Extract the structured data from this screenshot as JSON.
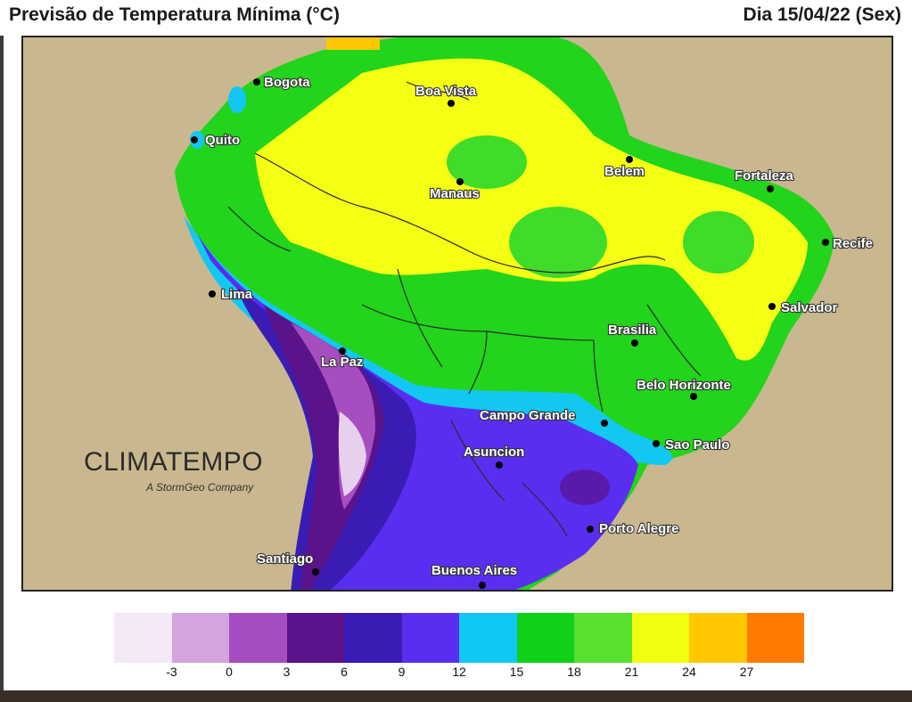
{
  "header": {
    "title": "Previsão de Temperatura Mínima (°C)",
    "date": "Dia 15/04/22 (Sex)"
  },
  "logo": {
    "name": "CLIMATEMPO",
    "tagline": "A StormGeo Company"
  },
  "cities": [
    {
      "name": "Bogota"
    },
    {
      "name": "Boa Vista"
    },
    {
      "name": "Quito"
    },
    {
      "name": "Belem"
    },
    {
      "name": "Fortaleza"
    },
    {
      "name": "Manaus"
    },
    {
      "name": "Recife"
    },
    {
      "name": "Lima"
    },
    {
      "name": "Salvador"
    },
    {
      "name": "Brasilia"
    },
    {
      "name": "La Paz"
    },
    {
      "name": "Belo Horizonte"
    },
    {
      "name": "Campo Grande"
    },
    {
      "name": "Sao Paulo"
    },
    {
      "name": "Asuncion"
    },
    {
      "name": "Porto Alegre"
    },
    {
      "name": "Santiago"
    },
    {
      "name": "Buenos Aires"
    }
  ],
  "legend": {
    "colors": [
      "#f3e8f6",
      "#d3a4dd",
      "#a64ec0",
      "#5a138a",
      "#3a1cb4",
      "#5a2ef0",
      "#10c8f4",
      "#10d018",
      "#58e030",
      "#f0ff10",
      "#ffc800",
      "#ff7a00"
    ],
    "ticks": [
      "-3",
      "0",
      "3",
      "6",
      "9",
      "12",
      "15",
      "18",
      "21",
      "24",
      "27"
    ]
  }
}
